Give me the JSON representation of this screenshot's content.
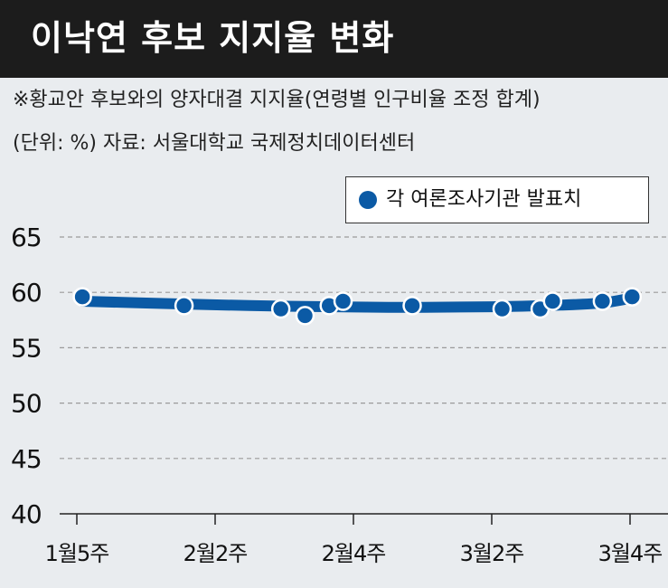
{
  "header": {
    "title": "이낙연 후보 지지율 변화"
  },
  "notes": {
    "line1": "※황교안 후보와의 양자대결 지지율(연령별 인구비율 조정 합계)",
    "line2": "(단위: %) 자료: 서울대학교 국제정치데이터센터"
  },
  "colors": {
    "series": "#0b5aa5",
    "title_bg": "#1c1c1c",
    "background": "#e9ecef"
  },
  "chart_data": {
    "type": "scatter",
    "ylim": [
      40,
      65
    ],
    "y_ticks": [
      40,
      45,
      50,
      55,
      60,
      65
    ],
    "y_tick_labels": [
      "40",
      "45",
      "50",
      "55",
      "60",
      "65"
    ],
    "x_ticks": [
      0,
      2,
      4,
      6,
      8
    ],
    "x_tick_labels": [
      "1월5주",
      "2월2주",
      "2월4주",
      "3월2주",
      "3월4주"
    ],
    "xlim": [
      -0.2,
      8.4
    ],
    "grid": true,
    "legend": {
      "position": "top-right",
      "label": "각 여론조사기관 발표치"
    },
    "points": [
      {
        "x": 0.08,
        "y": 59.6
      },
      {
        "x": 1.55,
        "y": 58.8
      },
      {
        "x": 2.95,
        "y": 58.5
      },
      {
        "x": 3.3,
        "y": 57.9
      },
      {
        "x": 3.65,
        "y": 58.8
      },
      {
        "x": 3.85,
        "y": 59.2
      },
      {
        "x": 4.85,
        "y": 58.8
      },
      {
        "x": 6.15,
        "y": 58.5
      },
      {
        "x": 6.7,
        "y": 58.5
      },
      {
        "x": 6.88,
        "y": 59.2
      },
      {
        "x": 7.6,
        "y": 59.2
      },
      {
        "x": 8.03,
        "y": 59.6
      }
    ],
    "trend": [
      {
        "x": 0.08,
        "y": 59.2
      },
      {
        "x": 1.5,
        "y": 58.95
      },
      {
        "x": 3.0,
        "y": 58.75
      },
      {
        "x": 4.5,
        "y": 58.65
      },
      {
        "x": 6.0,
        "y": 58.7
      },
      {
        "x": 7.0,
        "y": 58.85
      },
      {
        "x": 7.6,
        "y": 59.05
      },
      {
        "x": 8.03,
        "y": 59.5
      }
    ]
  }
}
